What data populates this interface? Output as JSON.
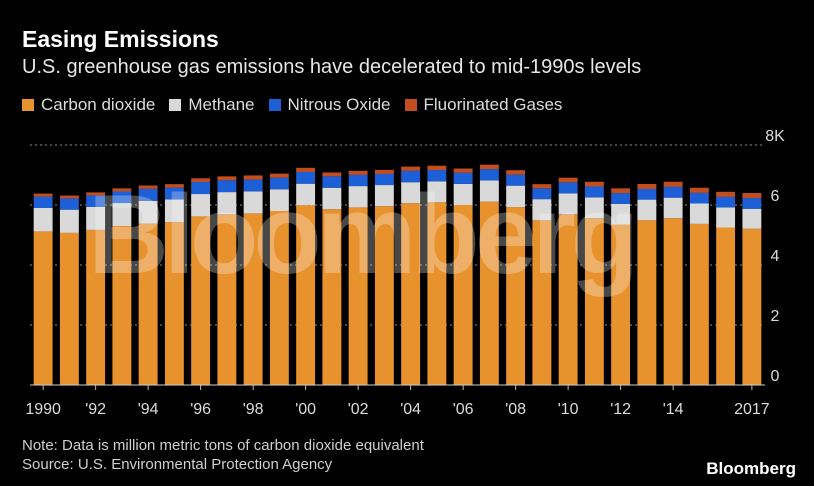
{
  "header": {
    "title": "Easing Emissions",
    "subtitle": "U.S. greenhouse gas emissions have decelerated to mid-1990s levels"
  },
  "legend": [
    {
      "label": "Carbon dioxide",
      "color": "#e8922e"
    },
    {
      "label": "Methane",
      "color": "#d9d9d9"
    },
    {
      "label": "Nitrous Oxide",
      "color": "#1d5fd6"
    },
    {
      "label": "Fluorinated Gases",
      "color": "#c24d1f"
    }
  ],
  "footer": {
    "note": "Note: Data is million metric tons of carbon dioxide equivalent",
    "source": "Source: U.S. Environmental Protection Agency",
    "brand": "Bloomberg",
    "watermark": "Bloomberg"
  },
  "chart_data": {
    "type": "bar",
    "stacked": true,
    "categories": [
      "1990",
      "1991",
      "1992",
      "1993",
      "1994",
      "1995",
      "1996",
      "1997",
      "1998",
      "1999",
      "2000",
      "2001",
      "2002",
      "2003",
      "2004",
      "2005",
      "2006",
      "2007",
      "2008",
      "2009",
      "2010",
      "2011",
      "2012",
      "2013",
      "2014",
      "2015",
      "2016",
      "2017"
    ],
    "x_tick_labels": [
      "1990",
      "",
      "'92",
      "",
      "'94",
      "",
      "'96",
      "",
      "'98",
      "",
      "'00",
      "",
      "'02",
      "",
      "'04",
      "",
      "'06",
      "",
      "'08",
      "",
      "'10",
      "",
      "'12",
      "",
      "'14",
      "",
      "",
      "2017"
    ],
    "series": [
      {
        "name": "Carbon dioxide",
        "color": "#e8922e",
        "values": [
          5120,
          5070,
          5170,
          5300,
          5380,
          5430,
          5620,
          5690,
          5720,
          5800,
          5990,
          5860,
          5920,
          5960,
          6060,
          6090,
          6000,
          6110,
          5930,
          5490,
          5690,
          5560,
          5350,
          5490,
          5560,
          5370,
          5250,
          5210
        ]
      },
      {
        "name": "Methane",
        "color": "#d9d9d9",
        "values": [
          780,
          775,
          770,
          765,
          760,
          755,
          745,
          740,
          735,
          725,
          720,
          715,
          710,
          705,
          700,
          700,
          705,
          710,
          715,
          705,
          700,
          695,
          690,
          690,
          685,
          680,
          670,
          665
        ]
      },
      {
        "name": "Nitrous Oxide",
        "color": "#1d5fd6",
        "values": [
          380,
          375,
          380,
          385,
          400,
          395,
          400,
          395,
          390,
          385,
          390,
          380,
          375,
          370,
          380,
          375,
          370,
          375,
          365,
          360,
          365,
          360,
          355,
          355,
          360,
          355,
          350,
          355
        ]
      },
      {
        "name": "Fluorinated Gases",
        "color": "#c24d1f",
        "values": [
          100,
          95,
          100,
          105,
          110,
          115,
          125,
          130,
          140,
          135,
          140,
          130,
          135,
          135,
          140,
          145,
          140,
          150,
          150,
          140,
          155,
          160,
          160,
          165,
          170,
          170,
          170,
          170
        ]
      }
    ],
    "y_ticks": [
      0,
      2,
      4,
      6,
      8
    ],
    "y_tick_labels": [
      "0",
      "2",
      "4",
      "6",
      "8K"
    ],
    "ylim": [
      0,
      8000
    ],
    "grid": true
  }
}
